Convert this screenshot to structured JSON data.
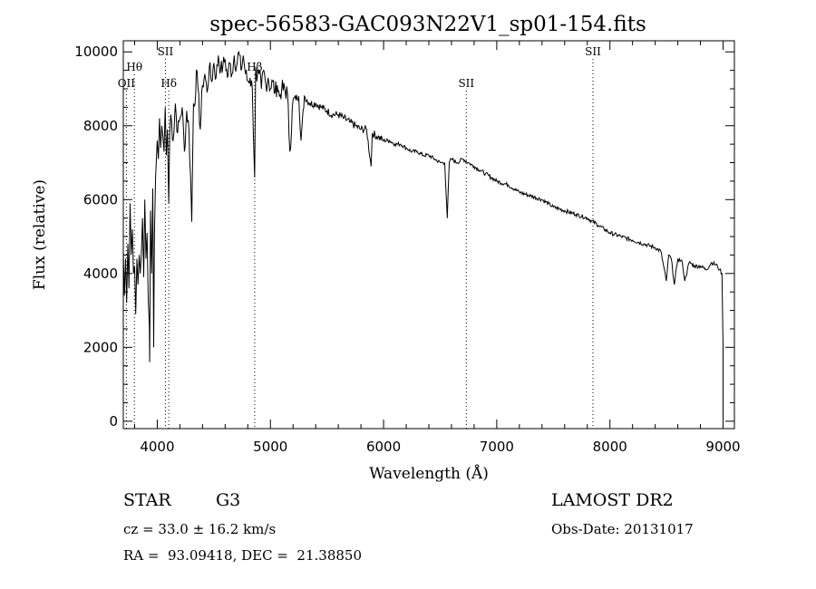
{
  "chart_data": {
    "type": "line",
    "title": "spec-56583-GAC093N22V1_sp01-154.fits",
    "xlabel": "Wavelength (Å)",
    "ylabel": "Flux (relative)",
    "xlim": [
      3700,
      9100
    ],
    "ylim": [
      -200,
      10300
    ],
    "x_ticks": [
      4000,
      5000,
      6000,
      7000,
      8000,
      9000
    ],
    "y_ticks": [
      0,
      2000,
      4000,
      6000,
      8000,
      10000
    ],
    "series": [
      {
        "x": [
          3700,
          3710,
          3720,
          3730,
          3740,
          3750,
          3760,
          3770,
          3780,
          3790,
          3800,
          3810,
          3820,
          3830,
          3840,
          3850,
          3860,
          3870,
          3880,
          3890,
          3900,
          3910,
          3920,
          3930,
          3933,
          3940,
          3950,
          3960,
          3968,
          3975,
          3985,
          4000,
          4010,
          4020,
          4030,
          4040,
          4050,
          4060,
          4070,
          4080,
          4090,
          4101,
          4110,
          4120,
          4140,
          4160,
          4180,
          4200,
          4220,
          4240,
          4260,
          4280,
          4300,
          4305,
          4320,
          4340,
          4345,
          4360,
          4380,
          4400,
          4420,
          4440,
          4460,
          4480,
          4500,
          4520,
          4540,
          4560,
          4580,
          4600,
          4620,
          4640,
          4660,
          4680,
          4700,
          4720,
          4740,
          4760,
          4780,
          4800,
          4820,
          4840,
          4861,
          4870,
          4880,
          4900,
          4920,
          4940,
          4960,
          4980,
          5000,
          5020,
          5040,
          5060,
          5080,
          5100,
          5150,
          5172,
          5200,
          5250,
          5270,
          5300,
          5350,
          5400,
          5450,
          5500,
          5550,
          5600,
          5650,
          5700,
          5750,
          5800,
          5850,
          5890,
          5900,
          5950,
          6000,
          6050,
          6100,
          6150,
          6200,
          6250,
          6300,
          6350,
          6400,
          6450,
          6500,
          6540,
          6563,
          6580,
          6600,
          6650,
          6700,
          6750,
          6800,
          6850,
          6900,
          6950,
          7000,
          7100,
          7200,
          7300,
          7400,
          7500,
          7600,
          7700,
          7800,
          7900,
          8000,
          8100,
          8200,
          8300,
          8400,
          8450,
          8498,
          8520,
          8542,
          8570,
          8600,
          8640,
          8662,
          8700,
          8750,
          8800,
          8850,
          8900,
          8950,
          8970,
          8990,
          9000,
          9000
        ],
        "values": [
          4600,
          3400,
          4400,
          3200,
          4800,
          3600,
          5900,
          4500,
          5200,
          4000,
          4200,
          2900,
          4400,
          3700,
          4500,
          4000,
          4600,
          5500,
          3900,
          6000,
          4400,
          5100,
          3300,
          2600,
          1600,
          5700,
          4000,
          6300,
          2000,
          5000,
          6600,
          7600,
          7100,
          8200,
          7400,
          8000,
          7700,
          7300,
          8500,
          7200,
          7900,
          5900,
          7800,
          8300,
          7600,
          8600,
          7800,
          8200,
          8500,
          7300,
          8400,
          7900,
          6000,
          5400,
          8600,
          8900,
          9500,
          9000,
          7900,
          9100,
          9400,
          8900,
          9600,
          9200,
          9700,
          9300,
          9900,
          9500,
          9600,
          9800,
          9300,
          9700,
          9400,
          9900,
          9600,
          10000,
          9500,
          9900,
          9400,
          9200,
          9300,
          9000,
          6600,
          9600,
          9200,
          9400,
          9000,
          9500,
          9100,
          9300,
          9000,
          9200,
          8900,
          9100,
          8800,
          9000,
          8900,
          7300,
          8700,
          8800,
          7600,
          8800,
          8600,
          8600,
          8500,
          8400,
          8300,
          8300,
          8200,
          8100,
          8000,
          7900,
          7900,
          6900,
          7800,
          7700,
          7600,
          7600,
          7500,
          7500,
          7400,
          7300,
          7300,
          7200,
          7200,
          7100,
          7000,
          7000,
          5500,
          7000,
          7100,
          7000,
          7100,
          7000,
          6900,
          6800,
          6700,
          6600,
          6500,
          6400,
          6200,
          6100,
          6000,
          5800,
          5700,
          5600,
          5500,
          5300,
          5100,
          5000,
          4900,
          4800,
          4700,
          4600,
          3800,
          4500,
          4400,
          3700,
          4400,
          4300,
          3800,
          4300,
          4200,
          4200,
          4100,
          4300,
          4200,
          4100,
          4000,
          2000,
          0
        ]
      }
    ],
    "lines": [
      {
        "label": "OII",
        "x": 3727,
        "level": 3
      },
      {
        "label": "Hθ",
        "x": 3798,
        "level": 2
      },
      {
        "label": "SII",
        "x": 4072,
        "level": 1
      },
      {
        "label": "Hδ",
        "x": 4102,
        "level": 3
      },
      {
        "label": "Hβ",
        "x": 4861,
        "level": 2
      },
      {
        "label": "SII",
        "x": 6731,
        "level": 3
      },
      {
        "label": "SII",
        "x": 7850,
        "level": 1
      }
    ]
  },
  "info": {
    "class": "STAR",
    "subclass": "G3",
    "cz": "cz = 33.0 ± 16.2 km/s",
    "radec": "RA =  93.09418, DEC =  21.38850",
    "survey": "LAMOST DR2",
    "obsdate": "Obs-Date: 20131017"
  }
}
